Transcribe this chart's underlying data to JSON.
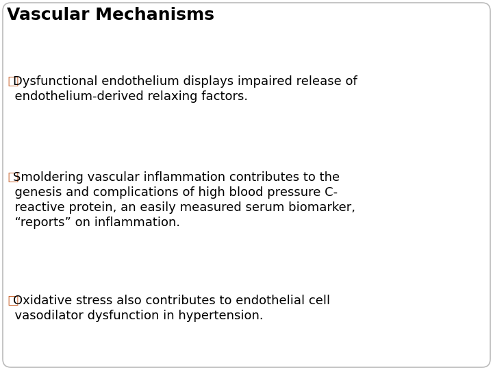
{
  "title": "Vascular Mechanisms",
  "title_color": "#000000",
  "title_fontsize": 18,
  "bullet_color": "#C8622B",
  "text_color": "#000000",
  "text_fontsize": 13,
  "background_color": "#FFFFFF",
  "border_color": "#BBBBBB",
  "bullets": [
    [
      "□Dysfunctional endothelium displays impaired release of",
      "  endothelium-derived relaxing factors."
    ],
    [
      "□Smoldering vascular inflammation contributes to the",
      "  genesis and complications of high blood pressure C-",
      "  reactive protein, an easily measured serum biomarker,",
      "  “reports” on inflammation."
    ],
    [
      "□Oxidative stress also contributes to endothelial cell",
      "  vasodilator dysfunction in hypertension."
    ]
  ]
}
